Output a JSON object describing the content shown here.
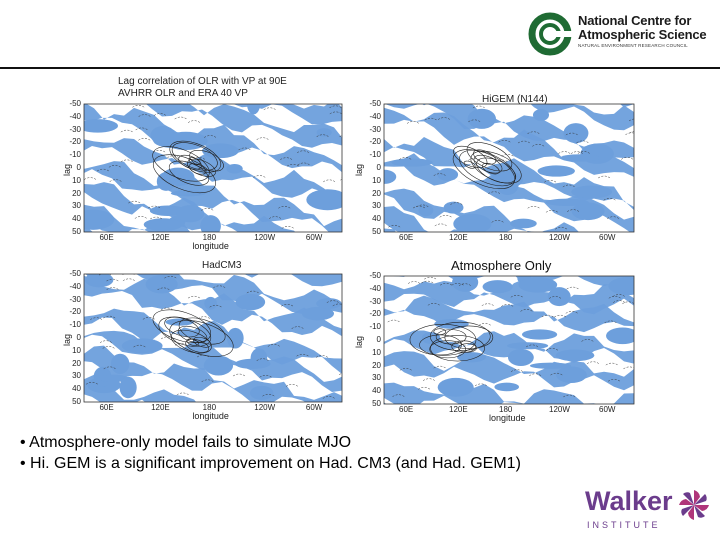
{
  "logo": {
    "title_line1": "National Centre for",
    "title_line2": "Atmospheric Science",
    "subtitle": "NATURAL ENVIRONMENT RESEARCH COUNCIL"
  },
  "panels": {
    "top_left": {
      "title1": "Lag correlation of OLR with VP at 90E",
      "title2": "AVHRR OLR and ERA 40 VP",
      "ylabel": "lag",
      "xlabel": "longitude",
      "yticks": [
        "-50",
        "-40",
        "-30",
        "-20",
        "-10",
        "0",
        "10",
        "20",
        "30",
        "40",
        "50"
      ],
      "xticks": [
        "60E",
        "120E",
        "180",
        "120W",
        "60W"
      ]
    },
    "top_right": {
      "title1": "HiGEM (N144)",
      "ylabel": "lag",
      "xlabel": "",
      "yticks": [
        "-50",
        "-40",
        "-30",
        "-20",
        "-10",
        "0",
        "10",
        "20",
        "30",
        "40",
        "50"
      ],
      "xticks": [
        "60E",
        "120E",
        "180",
        "120W",
        "60W"
      ]
    },
    "bottom_left": {
      "title1": "HadCM3",
      "ylabel": "lag",
      "xlabel": "longitude",
      "yticks": [
        "-50",
        "-40",
        "-30",
        "-20",
        "-10",
        "0",
        "10",
        "20",
        "30",
        "40",
        "50"
      ],
      "xticks": [
        "60E",
        "120E",
        "180",
        "120W",
        "60W"
      ]
    },
    "bottom_right": {
      "title1": "",
      "ylabel": "lag",
      "xlabel": "longitude",
      "yticks": [
        "-50",
        "-40",
        "-30",
        "-20",
        "-10",
        "0",
        "10",
        "20",
        "30",
        "40",
        "50"
      ],
      "xticks": [
        "60E",
        "120E",
        "180",
        "120W",
        "60W"
      ]
    }
  },
  "atmosphere_label": "Atmosphere Only",
  "bullets": [
    "• Atmosphere-only model fails to simulate MJO",
    "• Hi. GEM is a significant improvement on Had. CM3 (and Had. GEM1)"
  ],
  "walker": {
    "name": "Walker",
    "institute": "INSTITUTE"
  },
  "colors": {
    "ocean_blue": "#6d9fdc",
    "nercs_green": "#1f6b33",
    "walker_purple": "#6b3c8c"
  }
}
